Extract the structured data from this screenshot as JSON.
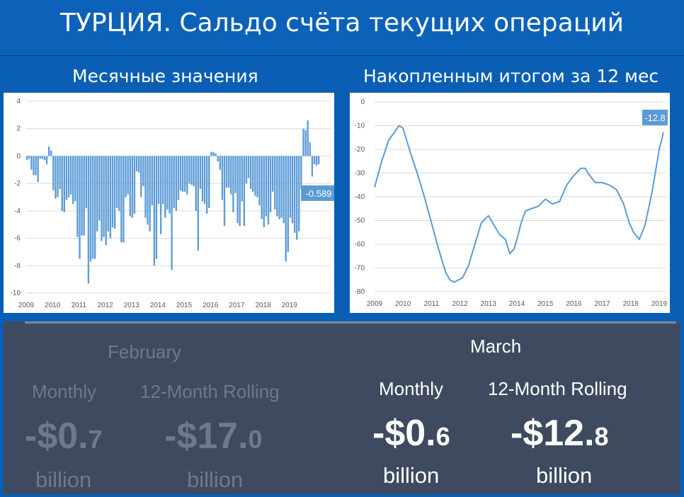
{
  "header": {
    "title": "ТУРЦИЯ. Сальдо счёта текущих операций",
    "left_subtitle": "Месячные значения",
    "right_subtitle": "Накопленным итогом за 12 мес"
  },
  "chart_data": [
    {
      "type": "bar",
      "title": "",
      "x_tick_labels": [
        "2009",
        "2010",
        "2011",
        "2012",
        "2013",
        "2014",
        "2015",
        "2016",
        "2017",
        "2018",
        "2019"
      ],
      "y_tick_labels": [
        "4",
        "2",
        "0",
        "-2",
        "-4",
        "-6",
        "-8",
        "-10"
      ],
      "ylim": [
        -10,
        4
      ],
      "color": "#5b9bd5",
      "grid": true,
      "last_value_label": "-0.589",
      "start": "2009-01",
      "values": [
        -0.3,
        -0.2,
        -1.0,
        -1.4,
        -1.4,
        -1.9,
        -0.2,
        -0.2,
        -0.3,
        -0.6,
        0.7,
        0.4,
        -2.5,
        -3.1,
        -3.0,
        -2.4,
        -4.0,
        -4.1,
        -3.2,
        -3.0,
        -2.8,
        -3.5,
        -3.3,
        -5.9,
        -7.5,
        -5.8,
        -5.8,
        -3.8,
        -9.3,
        -7.7,
        -7.5,
        -7.5,
        -5.5,
        -4.7,
        -6.2,
        -5.9,
        -6.5,
        -5.5,
        -6.0,
        -5.2,
        -5.3,
        -3.8,
        -4.0,
        -6.3,
        -6.3,
        -3.0,
        -2.8,
        -4.4,
        -4.5,
        -4.2,
        -1.1,
        -1.2,
        -3.0,
        -2.2,
        -4.5,
        -5.0,
        -5.5,
        -3.6,
        -8.0,
        -7.5,
        -3.5,
        -5.7,
        -3.5,
        -4.5,
        -3.9,
        -4.2,
        -8.3,
        -3.8,
        -4.0,
        -3.2,
        -2.5,
        -2.6,
        -2.6,
        -2.8,
        -2.0,
        -2.1,
        -2.2,
        -4.0,
        -6.9,
        -2.4,
        -3.3,
        -3.5,
        -4.2,
        -3.8,
        0.3,
        0.3,
        0.2,
        -0.4,
        -1.0,
        -3.2,
        -5.1,
        -2.3,
        -2.3,
        -2.8,
        -4.1,
        -2.7,
        -4.9,
        -5.1,
        -3.3,
        -5.1,
        -2.0,
        -1.6,
        -2.4,
        -2.6,
        -2.9,
        -3.0,
        -3.6,
        -4.6,
        -5.2,
        -4.4,
        -5.0,
        -4.1,
        -2.6,
        -3.9,
        -4.4,
        -4.6,
        -4.5,
        -4.9,
        -7.7,
        -7.0,
        -4.5,
        -4.9,
        -5.6,
        -6.1,
        -5.5,
        -2.4,
        2.0,
        1.9,
        2.6,
        1.0,
        -1.5,
        -0.6,
        -0.7,
        -0.589
      ]
    },
    {
      "type": "line",
      "title": "",
      "x_tick_labels": [
        "2009",
        "2010",
        "2011",
        "2012",
        "2013",
        "2014",
        "2015",
        "2016",
        "2017",
        "2018",
        "2019"
      ],
      "y_tick_labels": [
        "0",
        "-10",
        "-20",
        "-30",
        "-40",
        "-50",
        "-60",
        "-70",
        "-80"
      ],
      "ylim": [
        -80,
        0
      ],
      "color": "#5b9bd5",
      "grid": true,
      "last_value_label": "-12.8",
      "x_years": [
        2009.0,
        2009.25,
        2009.5,
        2009.75,
        2009.85,
        2010.0,
        2010.25,
        2010.5,
        2010.75,
        2011.0,
        2011.25,
        2011.5,
        2011.65,
        2011.8,
        2011.95,
        2012.1,
        2012.3,
        2012.5,
        2012.75,
        2013.0,
        2013.2,
        2013.4,
        2013.5,
        2013.6,
        2013.75,
        2013.9,
        2014.0,
        2014.15,
        2014.3,
        2014.5,
        2014.75,
        2015.0,
        2015.25,
        2015.5,
        2015.75,
        2016.0,
        2016.25,
        2016.4,
        2016.5,
        2016.75,
        2017.0,
        2017.25,
        2017.5,
        2017.75,
        2017.95,
        2018.1,
        2018.3,
        2018.5,
        2018.75,
        2019.0,
        2019.15
      ],
      "values": [
        -36,
        -25,
        -16,
        -12,
        -10,
        -11,
        -21,
        -30,
        -40,
        -51,
        -62,
        -72,
        -75,
        -76,
        -75,
        -74,
        -69,
        -61,
        -51,
        -48,
        -52,
        -56,
        -57,
        -58,
        -64,
        -62,
        -58,
        -51,
        -46,
        -45,
        -44,
        -41,
        -43,
        -42,
        -35,
        -31,
        -28,
        -28,
        -30,
        -34,
        -34,
        -35,
        -37,
        -43,
        -51,
        -55,
        -58,
        -52,
        -38,
        -20,
        -12.8
      ]
    }
  ],
  "bottom": {
    "february": {
      "month": "February",
      "monthly_header": "Monthly",
      "rolling_header": "12-Month Rolling",
      "monthly_main": "-$0.",
      "monthly_decimal": "7",
      "rolling_main": "-$17.",
      "rolling_decimal": "0",
      "unit": "billion"
    },
    "march": {
      "month": "March",
      "monthly_header": "Monthly",
      "rolling_header": "12-Month Rolling",
      "monthly_main": "-$0.",
      "monthly_decimal": "6",
      "rolling_main": "-$12.",
      "rolling_decimal": "8",
      "unit": "billion"
    },
    "colors": {
      "background": "#3d4a5f",
      "february_text": "#6f7989",
      "march_text": "#ffffff"
    }
  }
}
